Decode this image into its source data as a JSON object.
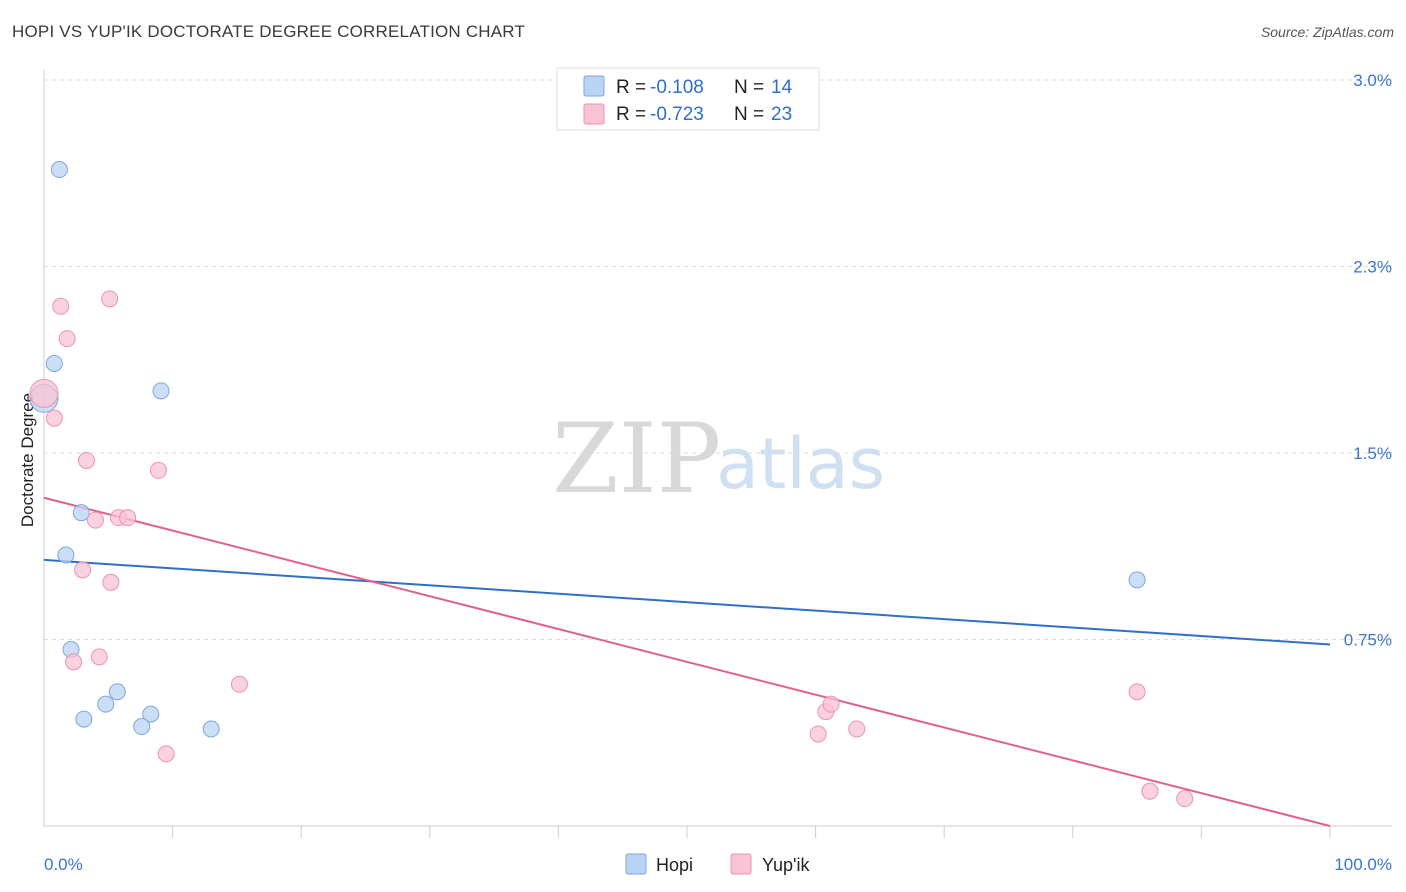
{
  "title": "HOPI VS YUP'IK DOCTORATE DEGREE CORRELATION CHART",
  "source": "Source: ZipAtlas.com",
  "colors": {
    "hopi": "#2f6fc9",
    "hopi_fill": "#b9d3f3",
    "yupik": "#e0608e",
    "yupik_fill": "#f8c3d3",
    "tick_label": "#3b76c9"
  },
  "watermark": {
    "zip": "ZIP",
    "atlas": "atlas"
  },
  "legend": {
    "rows": [
      {
        "r_label": "R = ",
        "r_value": "-0.108",
        "n_label": "N = ",
        "n_value": "14"
      },
      {
        "r_label": "R = ",
        "r_value": "-0.723",
        "n_label": "N = ",
        "n_value": "23"
      }
    ]
  },
  "chart_data": {
    "type": "scatter",
    "title": "HOPI VS YUP'IK DOCTORATE DEGREE CORRELATION CHART",
    "xlabel": "",
    "ylabel": "Doctorate Degree",
    "xlim": [
      0,
      100
    ],
    "ylim": [
      0.0,
      3.0
    ],
    "x_tick_labels": [
      "0.0%",
      "100.0%"
    ],
    "y_ticks": [
      0.75,
      1.5,
      2.25,
      3.0
    ],
    "y_tick_labels": [
      "0.75%",
      "1.5%",
      "2.3%",
      "3.0%"
    ],
    "grid": "horizontal dashed",
    "legend_position": "top-center",
    "bottom_legend": [
      "Hopi",
      "Yup'ik"
    ],
    "series": [
      {
        "name": "Hopi",
        "points": [
          [
            1.2,
            2.64
          ],
          [
            0.8,
            1.86
          ],
          [
            0.0,
            1.72
          ],
          [
            9.1,
            1.75
          ],
          [
            2.9,
            1.26
          ],
          [
            1.7,
            1.09
          ],
          [
            2.1,
            0.71
          ],
          [
            5.7,
            0.54
          ],
          [
            3.1,
            0.43
          ],
          [
            4.8,
            0.49
          ],
          [
            8.3,
            0.45
          ],
          [
            7.6,
            0.4
          ],
          [
            13.0,
            0.39
          ],
          [
            85.0,
            0.99
          ]
        ],
        "trend": {
          "x": [
            0,
            100
          ],
          "y": [
            1.07,
            0.73
          ]
        }
      },
      {
        "name": "Yup'ik",
        "points": [
          [
            1.3,
            2.09
          ],
          [
            5.1,
            2.12
          ],
          [
            1.8,
            1.96
          ],
          [
            0.0,
            1.74
          ],
          [
            0.8,
            1.64
          ],
          [
            3.3,
            1.47
          ],
          [
            8.9,
            1.43
          ],
          [
            4.0,
            1.23
          ],
          [
            5.8,
            1.24
          ],
          [
            6.5,
            1.24
          ],
          [
            3.0,
            1.03
          ],
          [
            5.2,
            0.98
          ],
          [
            2.3,
            0.66
          ],
          [
            4.3,
            0.68
          ],
          [
            15.2,
            0.57
          ],
          [
            9.5,
            0.29
          ],
          [
            60.2,
            0.37
          ],
          [
            60.8,
            0.46
          ],
          [
            61.2,
            0.49
          ],
          [
            63.2,
            0.39
          ],
          [
            85.0,
            0.54
          ],
          [
            86.0,
            0.14
          ],
          [
            88.7,
            0.11
          ]
        ],
        "trend": {
          "x": [
            0,
            100
          ],
          "y": [
            1.32,
            0.0
          ]
        }
      }
    ]
  }
}
